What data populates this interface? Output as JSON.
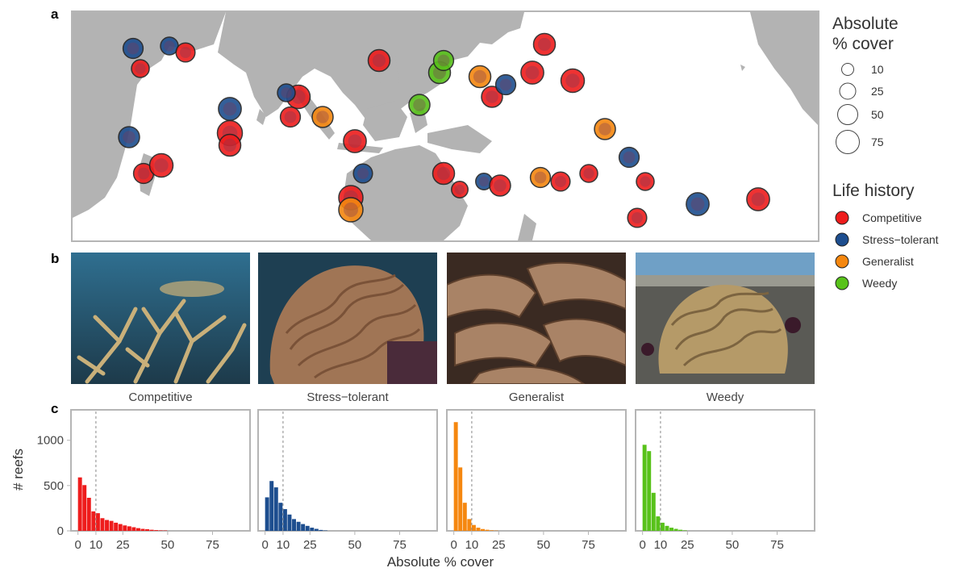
{
  "panels": {
    "a": "a",
    "b": "b",
    "c": "c"
  },
  "legend_size": {
    "title_line1": "Absolute",
    "title_line2": "% cover",
    "items": [
      {
        "label": "10",
        "value": 10
      },
      {
        "label": "25",
        "value": 25
      },
      {
        "label": "50",
        "value": 50
      },
      {
        "label": "75",
        "value": 75
      }
    ]
  },
  "legend_life": {
    "title": "Life history",
    "items": [
      {
        "label": "Competitive",
        "color": "#ee1c1c"
      },
      {
        "label": "Stress−tolerant",
        "color": "#1d4e8f"
      },
      {
        "label": "Generalist",
        "color": "#f5870f"
      },
      {
        "label": "Weedy",
        "color": "#58c21a"
      }
    ]
  },
  "photos": [
    {
      "caption": "Competitive",
      "subject": "branching staghorn coral"
    },
    {
      "caption": "Stress−tolerant",
      "subject": "massive brain coral"
    },
    {
      "caption": "Generalist",
      "subject": "plating coral"
    },
    {
      "caption": "Weedy",
      "subject": "small foliose coral in rock pool"
    }
  ],
  "chart_data": [
    {
      "type": "bar",
      "panel": "Competitive",
      "color": "#ee1c1c",
      "bin_starts": [
        0,
        2.5,
        5,
        7.5,
        10,
        12.5,
        15,
        17.5,
        20,
        22.5,
        25,
        27.5,
        30,
        32.5,
        35,
        37.5,
        40,
        42.5,
        45,
        47.5
      ],
      "values": [
        590,
        505,
        365,
        215,
        195,
        140,
        120,
        110,
        90,
        75,
        60,
        50,
        40,
        30,
        22,
        18,
        12,
        8,
        5,
        4
      ],
      "reference_line_x": 10,
      "xticks": [
        "0",
        "10",
        "25",
        "50",
        "75"
      ],
      "xlim": [
        -3,
        95
      ],
      "ylim": [
        0,
        1300
      ],
      "yticks": [
        "0",
        "500",
        "1000"
      ],
      "ylabel": "# reefs",
      "xlabel": "Absolute % cover"
    },
    {
      "type": "bar",
      "panel": "Stress−tolerant",
      "color": "#1d4e8f",
      "bin_starts": [
        0,
        2.5,
        5,
        7.5,
        10,
        12.5,
        15,
        17.5,
        20,
        22.5,
        25,
        27.5,
        30,
        32.5
      ],
      "values": [
        370,
        550,
        480,
        310,
        240,
        180,
        130,
        100,
        75,
        55,
        35,
        22,
        10,
        4
      ],
      "reference_line_x": 10,
      "xticks": [
        "0",
        "10",
        "25",
        "50",
        "75"
      ],
      "xlim": [
        -3,
        95
      ],
      "ylim": [
        0,
        1300
      ]
    },
    {
      "type": "bar",
      "panel": "Generalist",
      "color": "#f5870f",
      "bin_starts": [
        0,
        2.5,
        5,
        7.5,
        10,
        12.5,
        15,
        17.5,
        20,
        22.5
      ],
      "values": [
        1200,
        700,
        310,
        130,
        65,
        35,
        20,
        12,
        6,
        3
      ],
      "reference_line_x": 10,
      "xticks": [
        "0",
        "10",
        "25",
        "50",
        "75"
      ],
      "xlim": [
        -3,
        95
      ],
      "ylim": [
        0,
        1300
      ]
    },
    {
      "type": "bar",
      "panel": "Weedy",
      "color": "#58c21a",
      "bin_starts": [
        0,
        2.5,
        5,
        7.5,
        10,
        12.5,
        15,
        17.5,
        20,
        22.5
      ],
      "values": [
        950,
        880,
        420,
        160,
        90,
        55,
        35,
        22,
        12,
        5
      ],
      "reference_line_x": 10,
      "xticks": [
        "0",
        "10",
        "25",
        "50",
        "75"
      ],
      "xlim": [
        -3,
        95
      ],
      "ylim": [
        0,
        1300
      ]
    }
  ],
  "map": {
    "colors": {
      "Competitive": "#ee1c1c",
      "Stress−tolerant": "#1d4e8f",
      "Generalist": "#f5870f",
      "Weedy": "#58c21a",
      "land": "#b3b3b3",
      "ocean": "#ffffff"
    },
    "sites": [
      {
        "type": "Stress−tolerant",
        "cover": 30
      },
      {
        "type": "Competitive",
        "cover": 20
      },
      {
        "type": "Stress−tolerant",
        "cover": 20
      },
      {
        "type": "Competitive",
        "cover": 25
      },
      {
        "type": "Stress−tolerant",
        "cover": 35
      },
      {
        "type": "Competitive",
        "cover": 30
      },
      {
        "type": "Competitive",
        "cover": 50
      },
      {
        "type": "Competitive",
        "cover": 60
      },
      {
        "type": "Competitive",
        "cover": 40
      },
      {
        "type": "Stress−tolerant",
        "cover": 45
      },
      {
        "type": "Competitive",
        "cover": 50
      },
      {
        "type": "Generalist",
        "cover": 35
      },
      {
        "type": "Competitive",
        "cover": 30
      },
      {
        "type": "Stress−tolerant",
        "cover": 20
      },
      {
        "type": "Competitive",
        "cover": 45
      },
      {
        "type": "Stress−tolerant",
        "cover": 25
      },
      {
        "type": "Competitive",
        "cover": 55
      },
      {
        "type": "Generalist",
        "cover": 55
      },
      {
        "type": "Competitive",
        "cover": 40
      },
      {
        "type": "Weedy",
        "cover": 40
      },
      {
        "type": "Weedy",
        "cover": 30
      },
      {
        "type": "Generalist",
        "cover": 40
      },
      {
        "type": "Weedy",
        "cover": 35
      },
      {
        "type": "Competitive",
        "cover": 35
      },
      {
        "type": "Stress−tolerant",
        "cover": 30
      },
      {
        "type": "Competitive",
        "cover": 40
      },
      {
        "type": "Competitive",
        "cover": 45
      },
      {
        "type": "Competitive",
        "cover": 50
      },
      {
        "type": "Generalist",
        "cover": 35
      },
      {
        "type": "Competitive",
        "cover": 25
      },
      {
        "type": "Competitive",
        "cover": 20
      },
      {
        "type": "Stress−tolerant",
        "cover": 30
      },
      {
        "type": "Competitive",
        "cover": 20
      },
      {
        "type": "Competitive",
        "cover": 15
      },
      {
        "type": "Competitive",
        "cover": 40
      },
      {
        "type": "Stress−tolerant",
        "cover": 15
      },
      {
        "type": "Competitive",
        "cover": 35
      },
      {
        "type": "Generalist",
        "cover": 30
      },
      {
        "type": "Competitive",
        "cover": 25
      },
      {
        "type": "Stress−tolerant",
        "cover": 45
      },
      {
        "type": "Competitive",
        "cover": 45
      }
    ]
  }
}
